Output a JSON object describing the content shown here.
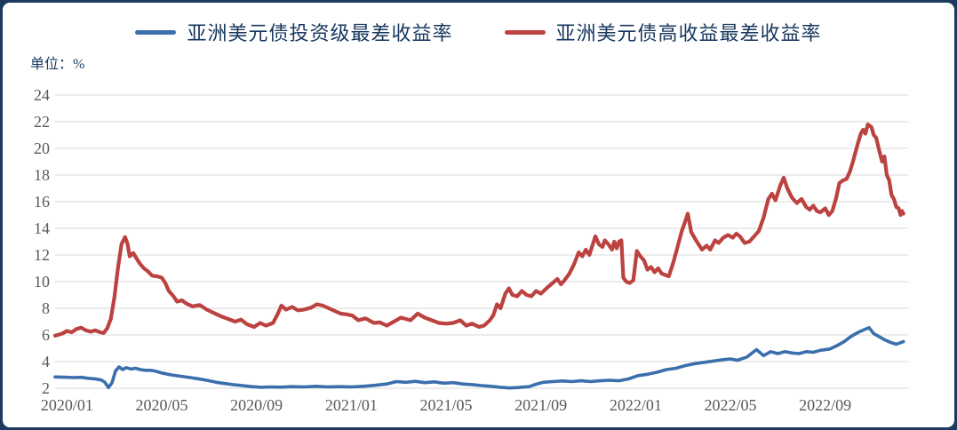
{
  "frame": {
    "border_color": "#1c3a5e",
    "background": "#ffffff"
  },
  "legend": {
    "items": [
      {
        "label": "亚洲美元债投资级最差收益率",
        "color": "#3b6eac"
      },
      {
        "label": "亚洲美元债高收益最差收益率",
        "color": "#bc4240"
      }
    ]
  },
  "unit_label": "单位：%",
  "axes": {
    "y_tick_labels": [
      "24",
      "22",
      "20",
      "18",
      "16",
      "14",
      "12",
      "10",
      "8",
      "6",
      "4",
      "2"
    ],
    "x_tick_labels": [
      "2020/01",
      "2020/05",
      "2020/09",
      "2021/01",
      "2021/05",
      "2021/09",
      "2022/01",
      "2022/05",
      "2022/09"
    ],
    "tick_color": "#595959",
    "grid_color": "#d9d9d9"
  },
  "chart_data": {
    "type": "line",
    "title": "",
    "xlabel": "",
    "ylabel": "单位：%",
    "x_unit": "months since 2020/01",
    "x_range": [
      0,
      36
    ],
    "y_range": [
      2,
      24
    ],
    "grid": "horizontal",
    "legend_position": "top",
    "x_tick_months": [
      0,
      4,
      8,
      12,
      16,
      20,
      24,
      28,
      32
    ],
    "y_ticks": [
      2,
      4,
      6,
      8,
      10,
      12,
      14,
      16,
      18,
      20,
      22,
      24
    ],
    "series": [
      {
        "name": "亚洲美元债投资级最差收益率",
        "color": "#3b6eac",
        "points": [
          [
            0,
            2.85
          ],
          [
            0.4,
            2.83
          ],
          [
            0.8,
            2.8
          ],
          [
            1.1,
            2.82
          ],
          [
            1.4,
            2.75
          ],
          [
            1.7,
            2.7
          ],
          [
            1.95,
            2.62
          ],
          [
            2.1,
            2.45
          ],
          [
            2.25,
            2.05
          ],
          [
            2.4,
            2.4
          ],
          [
            2.55,
            3.3
          ],
          [
            2.7,
            3.6
          ],
          [
            2.85,
            3.4
          ],
          [
            3.0,
            3.55
          ],
          [
            3.2,
            3.45
          ],
          [
            3.4,
            3.5
          ],
          [
            3.6,
            3.4
          ],
          [
            3.8,
            3.35
          ],
          [
            4.0,
            3.35
          ],
          [
            4.2,
            3.3
          ],
          [
            4.5,
            3.15
          ],
          [
            4.9,
            3.0
          ],
          [
            5.3,
            2.9
          ],
          [
            5.7,
            2.8
          ],
          [
            6.0,
            2.72
          ],
          [
            6.4,
            2.6
          ],
          [
            6.8,
            2.45
          ],
          [
            7.2,
            2.35
          ],
          [
            7.5,
            2.27
          ],
          [
            7.9,
            2.2
          ],
          [
            8.3,
            2.12
          ],
          [
            8.7,
            2.07
          ],
          [
            9.1,
            2.1
          ],
          [
            9.5,
            2.08
          ],
          [
            10,
            2.12
          ],
          [
            10.5,
            2.1
          ],
          [
            11,
            2.15
          ],
          [
            11.5,
            2.1
          ],
          [
            12,
            2.12
          ],
          [
            12.5,
            2.1
          ],
          [
            13,
            2.15
          ],
          [
            13.5,
            2.22
          ],
          [
            14,
            2.32
          ],
          [
            14.4,
            2.5
          ],
          [
            14.8,
            2.45
          ],
          [
            15.2,
            2.52
          ],
          [
            15.6,
            2.42
          ],
          [
            16,
            2.48
          ],
          [
            16.4,
            2.38
          ],
          [
            16.8,
            2.42
          ],
          [
            17.2,
            2.32
          ],
          [
            17.6,
            2.27
          ],
          [
            18,
            2.2
          ],
          [
            18.4,
            2.15
          ],
          [
            18.8,
            2.07
          ],
          [
            19.2,
            2.02
          ],
          [
            19.6,
            2.06
          ],
          [
            20,
            2.12
          ],
          [
            20.3,
            2.3
          ],
          [
            20.6,
            2.45
          ],
          [
            21,
            2.5
          ],
          [
            21.4,
            2.55
          ],
          [
            21.8,
            2.5
          ],
          [
            22.2,
            2.56
          ],
          [
            22.6,
            2.5
          ],
          [
            23,
            2.56
          ],
          [
            23.4,
            2.6
          ],
          [
            23.8,
            2.56
          ],
          [
            24.2,
            2.7
          ],
          [
            24.6,
            2.95
          ],
          [
            25,
            3.05
          ],
          [
            25.4,
            3.2
          ],
          [
            25.8,
            3.4
          ],
          [
            26.2,
            3.5
          ],
          [
            26.6,
            3.7
          ],
          [
            27,
            3.85
          ],
          [
            27.4,
            3.95
          ],
          [
            27.8,
            4.05
          ],
          [
            28.2,
            4.15
          ],
          [
            28.5,
            4.2
          ],
          [
            28.8,
            4.1
          ],
          [
            29.2,
            4.35
          ],
          [
            29.6,
            4.9
          ],
          [
            29.9,
            4.45
          ],
          [
            30.2,
            4.75
          ],
          [
            30.5,
            4.6
          ],
          [
            30.8,
            4.75
          ],
          [
            31.1,
            4.65
          ],
          [
            31.4,
            4.6
          ],
          [
            31.7,
            4.75
          ],
          [
            32,
            4.7
          ],
          [
            32.3,
            4.85
          ],
          [
            32.7,
            4.95
          ],
          [
            33,
            5.2
          ],
          [
            33.3,
            5.5
          ],
          [
            33.6,
            5.9
          ],
          [
            33.9,
            6.2
          ],
          [
            34.15,
            6.4
          ],
          [
            34.35,
            6.55
          ],
          [
            34.55,
            6.1
          ],
          [
            34.75,
            5.9
          ],
          [
            35,
            5.65
          ],
          [
            35.25,
            5.45
          ],
          [
            35.5,
            5.3
          ],
          [
            35.65,
            5.4
          ],
          [
            35.8,
            5.5
          ]
        ]
      },
      {
        "name": "亚洲美元债高收益最差收益率",
        "color": "#bc4240",
        "points": [
          [
            0,
            5.95
          ],
          [
            0.3,
            6.1
          ],
          [
            0.5,
            6.3
          ],
          [
            0.7,
            6.2
          ],
          [
            0.9,
            6.45
          ],
          [
            1.1,
            6.55
          ],
          [
            1.3,
            6.35
          ],
          [
            1.5,
            6.25
          ],
          [
            1.7,
            6.35
          ],
          [
            1.9,
            6.2
          ],
          [
            2.05,
            6.15
          ],
          [
            2.2,
            6.5
          ],
          [
            2.35,
            7.2
          ],
          [
            2.5,
            8.8
          ],
          [
            2.65,
            11.0
          ],
          [
            2.8,
            12.8
          ],
          [
            2.95,
            13.35
          ],
          [
            3.05,
            12.9
          ],
          [
            3.15,
            11.9
          ],
          [
            3.3,
            12.15
          ],
          [
            3.45,
            11.7
          ],
          [
            3.6,
            11.3
          ],
          [
            3.75,
            11.0
          ],
          [
            3.9,
            10.8
          ],
          [
            4.1,
            10.45
          ],
          [
            4.3,
            10.4
          ],
          [
            4.5,
            10.3
          ],
          [
            4.65,
            9.9
          ],
          [
            4.8,
            9.3
          ],
          [
            5.0,
            8.9
          ],
          [
            5.15,
            8.5
          ],
          [
            5.35,
            8.6
          ],
          [
            5.55,
            8.35
          ],
          [
            5.8,
            8.15
          ],
          [
            6.1,
            8.25
          ],
          [
            6.4,
            7.9
          ],
          [
            6.7,
            7.65
          ],
          [
            7.0,
            7.4
          ],
          [
            7.3,
            7.2
          ],
          [
            7.6,
            7.0
          ],
          [
            7.85,
            7.15
          ],
          [
            8.1,
            6.8
          ],
          [
            8.4,
            6.6
          ],
          [
            8.65,
            6.9
          ],
          [
            8.9,
            6.7
          ],
          [
            9.2,
            6.9
          ],
          [
            9.4,
            7.6
          ],
          [
            9.55,
            8.2
          ],
          [
            9.75,
            7.9
          ],
          [
            10,
            8.1
          ],
          [
            10.25,
            7.85
          ],
          [
            10.5,
            7.9
          ],
          [
            10.8,
            8.05
          ],
          [
            11.05,
            8.3
          ],
          [
            11.3,
            8.2
          ],
          [
            11.55,
            8.0
          ],
          [
            11.8,
            7.8
          ],
          [
            12.05,
            7.6
          ],
          [
            12.3,
            7.55
          ],
          [
            12.55,
            7.45
          ],
          [
            12.8,
            7.1
          ],
          [
            13.1,
            7.25
          ],
          [
            13.45,
            6.9
          ],
          [
            13.7,
            6.95
          ],
          [
            14,
            6.7
          ],
          [
            14.3,
            7.0
          ],
          [
            14.6,
            7.3
          ],
          [
            15,
            7.1
          ],
          [
            15.3,
            7.6
          ],
          [
            15.6,
            7.3
          ],
          [
            15.9,
            7.1
          ],
          [
            16.2,
            6.9
          ],
          [
            16.5,
            6.85
          ],
          [
            16.8,
            6.9
          ],
          [
            17.1,
            7.1
          ],
          [
            17.35,
            6.7
          ],
          [
            17.6,
            6.85
          ],
          [
            17.9,
            6.6
          ],
          [
            18.1,
            6.7
          ],
          [
            18.35,
            7.1
          ],
          [
            18.5,
            7.5
          ],
          [
            18.65,
            8.3
          ],
          [
            18.8,
            8.0
          ],
          [
            19,
            9.1
          ],
          [
            19.15,
            9.5
          ],
          [
            19.3,
            9.0
          ],
          [
            19.5,
            8.9
          ],
          [
            19.7,
            9.3
          ],
          [
            19.9,
            9.0
          ],
          [
            20.1,
            8.9
          ],
          [
            20.3,
            9.3
          ],
          [
            20.5,
            9.1
          ],
          [
            20.8,
            9.6
          ],
          [
            21,
            9.9
          ],
          [
            21.2,
            10.2
          ],
          [
            21.35,
            9.8
          ],
          [
            21.5,
            10.1
          ],
          [
            21.7,
            10.6
          ],
          [
            21.9,
            11.3
          ],
          [
            22.1,
            12.2
          ],
          [
            22.25,
            11.9
          ],
          [
            22.4,
            12.4
          ],
          [
            22.55,
            12.0
          ],
          [
            22.8,
            13.4
          ],
          [
            22.95,
            12.8
          ],
          [
            23.1,
            12.6
          ],
          [
            23.2,
            13.1
          ],
          [
            23.35,
            12.8
          ],
          [
            23.5,
            12.4
          ],
          [
            23.6,
            13.0
          ],
          [
            23.7,
            12.5
          ],
          [
            23.8,
            13.0
          ],
          [
            23.9,
            13.1
          ],
          [
            23.98,
            10.3
          ],
          [
            24.1,
            10.0
          ],
          [
            24.25,
            9.9
          ],
          [
            24.4,
            10.1
          ],
          [
            24.55,
            12.3
          ],
          [
            24.7,
            11.9
          ],
          [
            24.85,
            11.6
          ],
          [
            25,
            10.9
          ],
          [
            25.15,
            11.1
          ],
          [
            25.3,
            10.7
          ],
          [
            25.45,
            11.0
          ],
          [
            25.6,
            10.6
          ],
          [
            25.75,
            10.5
          ],
          [
            25.9,
            10.4
          ],
          [
            26.1,
            11.5
          ],
          [
            26.3,
            12.8
          ],
          [
            26.45,
            13.8
          ],
          [
            26.55,
            14.3
          ],
          [
            26.7,
            15.1
          ],
          [
            26.85,
            13.7
          ],
          [
            27.05,
            13.1
          ],
          [
            27.3,
            12.4
          ],
          [
            27.5,
            12.7
          ],
          [
            27.65,
            12.4
          ],
          [
            27.85,
            13.1
          ],
          [
            28,
            12.9
          ],
          [
            28.2,
            13.3
          ],
          [
            28.4,
            13.5
          ],
          [
            28.6,
            13.3
          ],
          [
            28.75,
            13.6
          ],
          [
            28.9,
            13.4
          ],
          [
            29.1,
            12.9
          ],
          [
            29.3,
            13.0
          ],
          [
            29.5,
            13.4
          ],
          [
            29.7,
            13.8
          ],
          [
            29.9,
            14.8
          ],
          [
            30.1,
            16.2
          ],
          [
            30.25,
            16.6
          ],
          [
            30.4,
            16.1
          ],
          [
            30.6,
            17.2
          ],
          [
            30.75,
            17.8
          ],
          [
            30.9,
            17.0
          ],
          [
            31.1,
            16.3
          ],
          [
            31.3,
            15.9
          ],
          [
            31.5,
            16.2
          ],
          [
            31.7,
            15.6
          ],
          [
            31.85,
            15.4
          ],
          [
            32,
            15.7
          ],
          [
            32.15,
            15.3
          ],
          [
            32.3,
            15.2
          ],
          [
            32.5,
            15.5
          ],
          [
            32.65,
            15.0
          ],
          [
            32.8,
            15.3
          ],
          [
            32.95,
            16.2
          ],
          [
            33.1,
            17.4
          ],
          [
            33.25,
            17.6
          ],
          [
            33.4,
            17.7
          ],
          [
            33.55,
            18.3
          ],
          [
            33.7,
            19.2
          ],
          [
            33.85,
            20.2
          ],
          [
            34,
            21.1
          ],
          [
            34.1,
            21.4
          ],
          [
            34.2,
            21.1
          ],
          [
            34.3,
            21.8
          ],
          [
            34.45,
            21.6
          ],
          [
            34.55,
            21.0
          ],
          [
            34.65,
            20.8
          ],
          [
            34.8,
            19.7
          ],
          [
            34.9,
            19.0
          ],
          [
            35,
            19.4
          ],
          [
            35.1,
            18.0
          ],
          [
            35.2,
            17.6
          ],
          [
            35.3,
            16.5
          ],
          [
            35.4,
            16.2
          ],
          [
            35.5,
            15.6
          ],
          [
            35.6,
            15.5
          ],
          [
            35.68,
            15.0
          ],
          [
            35.74,
            15.3
          ],
          [
            35.8,
            15.1
          ]
        ]
      }
    ]
  }
}
